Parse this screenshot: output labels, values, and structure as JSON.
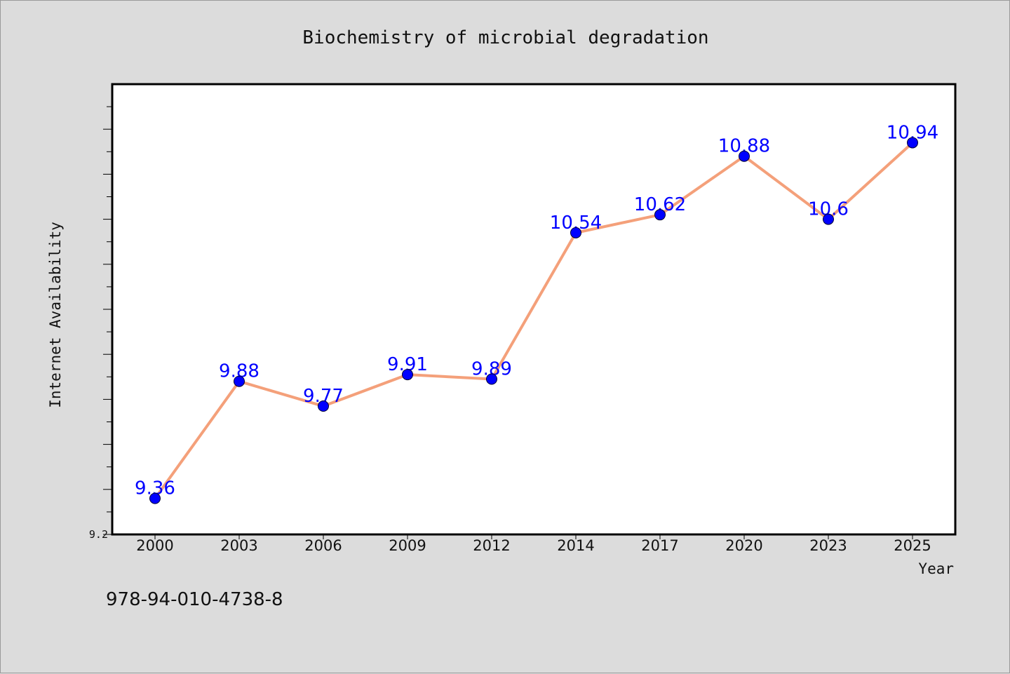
{
  "chart_data": {
    "type": "line",
    "title": "Biochemistry of microbial degradation",
    "xlabel": "Year",
    "ylabel": "Internet Availability",
    "x": [
      "2000",
      "2003",
      "2006",
      "2009",
      "2012",
      "2014",
      "2017",
      "2020",
      "2023",
      "2025"
    ],
    "values": [
      9.36,
      9.88,
      9.77,
      9.91,
      9.89,
      10.54,
      10.62,
      10.88,
      10.6,
      10.94
    ],
    "data_labels": [
      "9.36",
      "9.88",
      "9.77",
      "9.91",
      "9.89",
      "10.54",
      "10.62",
      "10.88",
      "10.6",
      "10.94"
    ],
    "ylim": [
      9.2,
      11.2
    ],
    "y_tick_labels": [
      "9.2"
    ],
    "grid": false,
    "line_color": "#f4a07a",
    "marker_color": "#0000ff",
    "label_color": "#0000ff",
    "plot_background": "#ffffff",
    "page_background": "#dcdcdc"
  },
  "footer": {
    "isbn": "978-94-010-4738-8"
  }
}
